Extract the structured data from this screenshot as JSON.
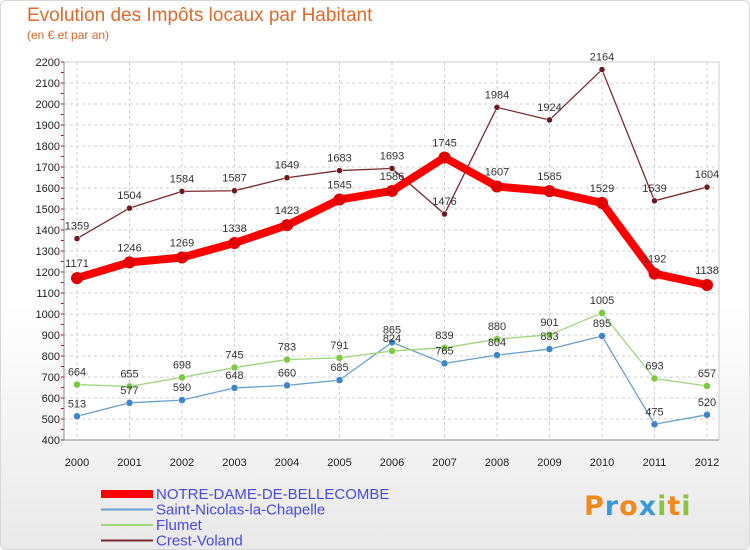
{
  "chart_data": {
    "type": "line",
    "title": "Evolution des Impôts locaux par Habitant",
    "subtitle": "(en € et par an)",
    "x": [
      "2000",
      "2001",
      "2002",
      "2003",
      "2004",
      "2005",
      "2006",
      "2007",
      "2008",
      "2009",
      "2010",
      "2011",
      "2012"
    ],
    "ylim": [
      400,
      2200
    ],
    "yticks": [
      400,
      500,
      600,
      700,
      800,
      900,
      1000,
      1100,
      1200,
      1300,
      1400,
      1500,
      1600,
      1700,
      1800,
      1900,
      2000,
      2100,
      2200
    ],
    "grid": true,
    "legend_position": "bottom-left",
    "series": [
      {
        "name": "NOTRE-DAME-DE-BELLECOMBE",
        "color": "#ff0000",
        "marker": "#e00000",
        "values": [
          1171,
          1246,
          1269,
          1338,
          1423,
          1545,
          1586,
          1745,
          1607,
          1585,
          1529,
          1192,
          1138
        ]
      },
      {
        "name": "Saint-Nicolas-la-Chapelle",
        "color": "#6a9fcf",
        "marker": "#3f86c8",
        "values": [
          513,
          577,
          590,
          648,
          660,
          685,
          865,
          765,
          804,
          833,
          895,
          475,
          520
        ]
      },
      {
        "name": "Flumet",
        "color": "#9ed67a",
        "marker": "#7cc943",
        "values": [
          664,
          655,
          698,
          745,
          783,
          791,
          824,
          839,
          880,
          901,
          1005,
          693,
          657
        ]
      },
      {
        "name": "Crest-Voland",
        "color": "#7a2a2e",
        "marker": "#6b1a1f",
        "values": [
          1359,
          1504,
          1584,
          1587,
          1649,
          1683,
          1693,
          1476,
          1984,
          1924,
          2164,
          1539,
          1604
        ]
      }
    ]
  },
  "logo": {
    "letters": [
      "P",
      "r",
      "o",
      "x",
      "i",
      "t",
      "i"
    ],
    "colors": [
      "#f08a1c",
      "#3a9ad9",
      "#f08a1c",
      "#3a9ad9",
      "#8bc53f",
      "#f08a1c",
      "#8bc53f"
    ]
  }
}
